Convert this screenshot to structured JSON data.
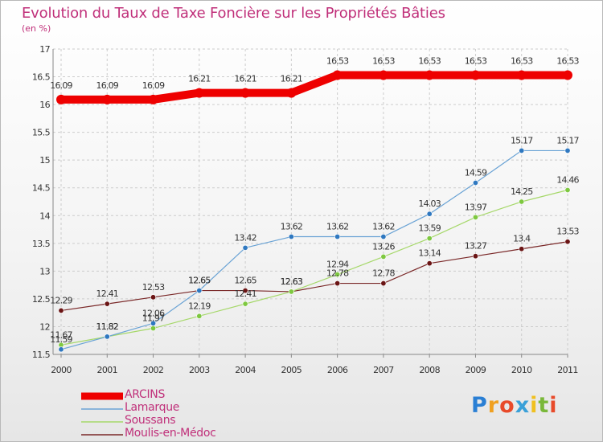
{
  "title": "Evolution du Taux de Taxe Foncière sur les Propriétés Bâties",
  "unit_label": "(en %)",
  "logo": {
    "letters": [
      "P",
      "r",
      "o",
      "x",
      "i",
      "t",
      "i"
    ],
    "colors": [
      "#2a7fd4",
      "#f0a020",
      "#e84a2a",
      "#3aa0d8",
      "#f0c020",
      "#7ab83a",
      "#e84a2a"
    ]
  },
  "colors": {
    "grid": "#cccccc",
    "axis": "#888888",
    "title": "#c0307a"
  },
  "chart_data": {
    "type": "line",
    "title": "Evolution du Taux de Taxe Foncière sur les Propriétés Bâties",
    "ylabel": "(en %)",
    "xlabel": "",
    "x": [
      "2000",
      "2001",
      "2002",
      "2003",
      "2004",
      "2005",
      "2006",
      "2007",
      "2008",
      "2009",
      "2010",
      "2011"
    ],
    "ylim": [
      11.5,
      17
    ],
    "yticks": [
      "11.5",
      "12",
      "12.5",
      "13",
      "13.5",
      "14",
      "14.5",
      "15",
      "15.5",
      "16",
      "16.5",
      "17"
    ],
    "grid": true,
    "legend_position": "bottom-left",
    "series": [
      {
        "name": "ARCINS",
        "color": "#ee0000",
        "marker": "#ee0000",
        "width": 10,
        "values": [
          16.09,
          16.09,
          16.09,
          16.21,
          16.21,
          16.21,
          16.53,
          16.53,
          16.53,
          16.53,
          16.53,
          16.53
        ],
        "labels": [
          "16.09",
          "16.09",
          "16.09",
          "16.21",
          "16.21",
          "16.21",
          "16.53",
          "16.53",
          "16.53",
          "16.53",
          "16.53",
          "16.53"
        ]
      },
      {
        "name": "Lamarque",
        "color": "#6aa3d5",
        "marker": "#2f78c0",
        "width": 1.2,
        "values": [
          11.59,
          11.82,
          12.06,
          12.65,
          13.42,
          13.62,
          13.62,
          13.62,
          14.03,
          14.59,
          15.17,
          15.17
        ],
        "labels": [
          "11.59",
          "11.82",
          "12.06",
          "12.65",
          "13.42",
          "13.62",
          "13.62",
          "13.62",
          "14.03",
          "14.59",
          "15.17",
          "15.17"
        ]
      },
      {
        "name": "Soussans",
        "color": "#a6d86a",
        "marker": "#7ec840",
        "width": 1.2,
        "values": [
          11.67,
          11.82,
          11.97,
          12.19,
          12.41,
          12.63,
          12.94,
          13.26,
          13.59,
          13.97,
          14.25,
          14.46
        ],
        "labels": [
          "11.67",
          "11.82",
          "11.97",
          "12.19",
          "12.41",
          "12.63",
          "12.94",
          "13.26",
          "13.59",
          "13.97",
          "14.25",
          "14.46"
        ]
      },
      {
        "name": "Moulis-en-Médoc",
        "color": "#7a2828",
        "marker": "#6a1414",
        "width": 1.2,
        "values": [
          12.29,
          12.41,
          12.53,
          12.65,
          12.65,
          12.63,
          12.78,
          12.78,
          13.14,
          13.27,
          13.4,
          13.53
        ],
        "labels": [
          "12.29",
          "12.41",
          "12.53",
          "12.65",
          "12.65",
          "12.63",
          "12.78",
          "12.78",
          "13.14",
          "13.27",
          "13.4",
          "13.53"
        ]
      }
    ]
  }
}
